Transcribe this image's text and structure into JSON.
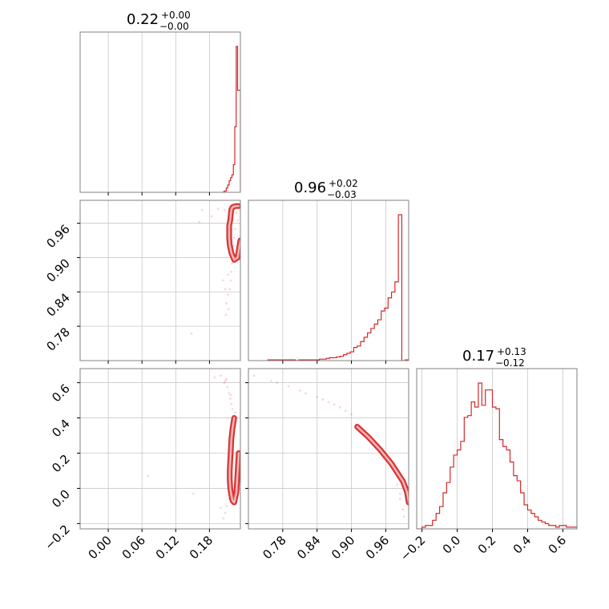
{
  "chart_data": {
    "type": "corner",
    "color": "#d62728",
    "parameters": [
      {
        "median": "0.22",
        "plus": "+0.00",
        "minus": "−0.00",
        "range": [
          -0.05,
          0.235
        ],
        "ticks": [
          0.0,
          0.06,
          0.12,
          0.18
        ],
        "tick_labels": [
          "0.00",
          "0.06",
          "0.12",
          "0.18"
        ],
        "hist": {
          "edges": [
            0.205,
            0.2075,
            0.21,
            0.2125,
            0.215,
            0.2175,
            0.22,
            0.2225,
            0.225,
            0.2275,
            0.23,
            0.2325,
            0.235
          ],
          "counts": [
            0.005,
            0.01,
            0.03,
            0.05,
            0.08,
            0.1,
            0.12,
            0.19,
            0.45,
            1.0,
            0.7,
            0.7
          ]
        }
      },
      {
        "median": "0.96",
        "plus": "+0.02",
        "minus": "−0.03",
        "range": [
          0.72,
          1.0
        ],
        "ticks": [
          0.78,
          0.84,
          0.9,
          0.96
        ],
        "tick_labels": [
          "0.78",
          "0.84",
          "0.90",
          "0.96"
        ],
        "hist": {
          "edges": [
            0.754,
            0.76,
            0.766,
            0.772,
            0.778,
            0.784,
            0.79,
            0.796,
            0.802,
            0.808,
            0.814,
            0.82,
            0.826,
            0.832,
            0.838,
            0.844,
            0.85,
            0.856,
            0.862,
            0.868,
            0.874,
            0.88,
            0.886,
            0.892,
            0.898,
            0.904,
            0.91,
            0.916,
            0.922,
            0.928,
            0.934,
            0.94,
            0.946,
            0.952,
            0.958,
            0.964,
            0.97,
            0.976,
            0.982,
            0.988,
            0.994,
            1.0
          ],
          "counts": [
            0.005,
            0.005,
            0.005,
            0.005,
            0.005,
            0.005,
            0.005,
            0.005,
            0.0,
            0.005,
            0.005,
            0.005,
            0.005,
            0.005,
            0.005,
            0.01,
            0.01,
            0.015,
            0.02,
            0.02,
            0.025,
            0.03,
            0.04,
            0.05,
            0.06,
            0.09,
            0.1,
            0.13,
            0.16,
            0.19,
            0.22,
            0.25,
            0.28,
            0.34,
            0.36,
            0.43,
            0.47,
            0.54,
            1.0,
            0.0,
            0.005
          ]
        }
      },
      {
        "median": "0.17",
        "plus": "+0.13",
        "minus": "−0.12",
        "range": [
          -0.23,
          0.68
        ],
        "ticks": [
          -0.2,
          0.0,
          0.2,
          0.4,
          0.6
        ],
        "tick_labels": [
          "−0.2",
          "0.0",
          "0.2",
          "0.4",
          "0.6"
        ],
        "hist": {
          "edges": [
            -0.23,
            -0.2,
            -0.18,
            -0.16,
            -0.14,
            -0.12,
            -0.1,
            -0.08,
            -0.06,
            -0.04,
            -0.02,
            0.0,
            0.02,
            0.04,
            0.06,
            0.08,
            0.1,
            0.12,
            0.14,
            0.16,
            0.18,
            0.2,
            0.22,
            0.24,
            0.26,
            0.28,
            0.3,
            0.32,
            0.34,
            0.36,
            0.38,
            0.4,
            0.42,
            0.44,
            0.46,
            0.48,
            0.5,
            0.52,
            0.54,
            0.56,
            0.58,
            0.6,
            0.62,
            0.64,
            0.66,
            0.68
          ],
          "counts": [
            0.0,
            0.01,
            0.02,
            0.02,
            0.05,
            0.09,
            0.13,
            0.21,
            0.27,
            0.36,
            0.43,
            0.46,
            0.51,
            0.65,
            0.66,
            0.74,
            0.71,
            0.85,
            0.72,
            0.81,
            0.81,
            0.71,
            0.7,
            0.52,
            0.48,
            0.46,
            0.39,
            0.31,
            0.28,
            0.21,
            0.14,
            0.11,
            0.09,
            0.07,
            0.05,
            0.04,
            0.03,
            0.02,
            0.02,
            0.01,
            0.02,
            0.02,
            0.01,
            0.01,
            0.01
          ]
        }
      }
    ],
    "scatter_1_0": [
      [
        0.215,
        0.985
      ],
      [
        0.207,
        0.983
      ],
      [
        0.228,
        0.978
      ],
      [
        0.23,
        0.965
      ],
      [
        0.226,
        0.95
      ],
      [
        0.224,
        0.935
      ],
      [
        0.222,
        0.92
      ],
      [
        0.221,
        0.905
      ],
      [
        0.22,
        0.89
      ],
      [
        0.219,
        0.875
      ],
      [
        0.218,
        0.86
      ],
      [
        0.216,
        0.845
      ],
      [
        0.213,
        0.835
      ],
      [
        0.208,
        0.845
      ],
      [
        0.204,
        0.86
      ],
      [
        0.184,
        0.972
      ],
      [
        0.167,
        0.983
      ],
      [
        0.21,
        0.82
      ],
      [
        0.214,
        0.81
      ],
      [
        0.209,
        0.8
      ],
      [
        0.148,
        0.767
      ],
      [
        0.162,
        0.962
      ],
      [
        0.195,
        0.985
      ],
      [
        0.213,
        0.87
      ]
    ],
    "scatter_2_0": [
      [
        0.2,
        0.64
      ],
      [
        0.208,
        0.61
      ],
      [
        0.212,
        0.575
      ],
      [
        0.215,
        0.54
      ],
      [
        0.217,
        0.51
      ],
      [
        0.219,
        0.48
      ],
      [
        0.221,
        0.45
      ],
      [
        0.226,
        0.43
      ],
      [
        0.206,
        0.6
      ],
      [
        0.189,
        0.63
      ],
      [
        0.216,
        0.0
      ],
      [
        0.214,
        -0.06
      ],
      [
        0.211,
        -0.1
      ],
      [
        0.208,
        -0.14
      ],
      [
        0.205,
        -0.17
      ],
      [
        0.2,
        -0.11
      ],
      [
        0.071,
        0.07
      ],
      [
        0.151,
        -0.03
      ],
      [
        0.21,
        0.62
      ],
      [
        0.218,
        0.53
      ]
    ],
    "scatter_2_1": [
      [
        0.73,
        0.64
      ],
      [
        0.76,
        0.61
      ],
      [
        0.79,
        0.58
      ],
      [
        0.82,
        0.54
      ],
      [
        0.84,
        0.52
      ],
      [
        0.86,
        0.49
      ],
      [
        0.88,
        0.46
      ],
      [
        0.89,
        0.44
      ],
      [
        0.9,
        0.42
      ],
      [
        0.87,
        0.475
      ],
      [
        0.85,
        0.505
      ],
      [
        0.81,
        0.555
      ],
      [
        0.77,
        0.6
      ],
      [
        0.985,
        -0.06
      ],
      [
        0.99,
        -0.12
      ],
      [
        0.992,
        -0.16
      ],
      [
        0.985,
        -0.03
      ],
      [
        0.98,
        0.02
      ]
    ],
    "contour_1_0": {
      "x": [
        0.232,
        0.227,
        0.223,
        0.221,
        0.219,
        0.218,
        0.217,
        0.215,
        0.215,
        0.215,
        0.216,
        0.219,
        0.224,
        0.23,
        0.235
      ],
      "y": [
        0.99,
        0.99,
        0.989,
        0.988,
        0.984,
        0.976,
        0.966,
        0.955,
        0.945,
        0.935,
        0.922,
        0.908,
        0.896,
        0.9,
        0.93
      ]
    },
    "contour_2_0": {
      "x": [
        0.224,
        0.221,
        0.219,
        0.218,
        0.217,
        0.216,
        0.216,
        0.217,
        0.219,
        0.221,
        0.224,
        0.228,
        0.232
      ],
      "y": [
        0.4,
        0.34,
        0.28,
        0.22,
        0.16,
        0.1,
        0.05,
        0.0,
        -0.04,
        -0.07,
        -0.08,
        -0.02,
        0.2
      ]
    },
    "contour_2_1": {
      "x": [
        0.91,
        0.92,
        0.93,
        0.94,
        0.95,
        0.96,
        0.97,
        0.98,
        0.99,
        0.997,
        1.0
      ],
      "y": [
        0.35,
        0.32,
        0.29,
        0.255,
        0.22,
        0.18,
        0.14,
        0.09,
        0.04,
        -0.02,
        -0.08
      ]
    }
  }
}
